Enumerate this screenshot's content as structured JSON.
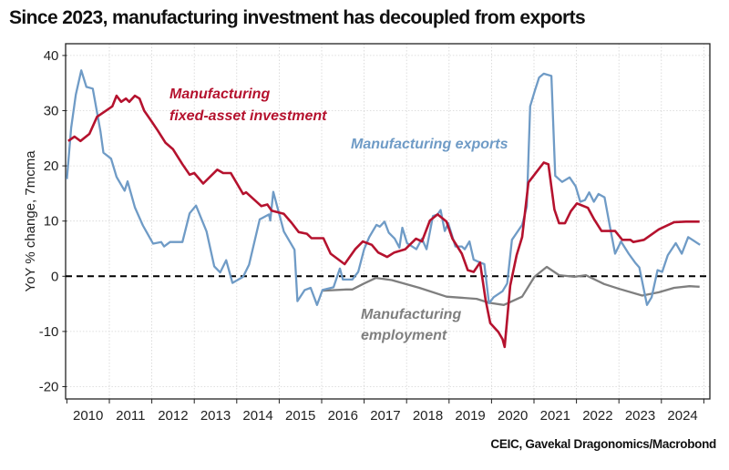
{
  "chart_data": {
    "type": "line",
    "title": "Since 2023, manufacturing investment has decoupled from exports",
    "source": "CEIC, Gavekal Dragonomics/Macrobond",
    "ylabel": "YoY % change, 7mcma",
    "xlabel": "",
    "xlim": [
      2010,
      2025
    ],
    "ylim": [
      -22,
      42
    ],
    "yticks": [
      -20,
      -10,
      0,
      10,
      20,
      30,
      40
    ],
    "xtick_labels": [
      "2010",
      "2011",
      "2012",
      "2013",
      "2014",
      "2015",
      "2016",
      "2017",
      "2018",
      "2019",
      "2020",
      "2021",
      "2022",
      "2023",
      "2024"
    ],
    "grid": true,
    "reference_line": {
      "y": 0,
      "style": "dashed",
      "color": "#000000"
    },
    "series": [
      {
        "name": "Manufacturing fixed-asset investment",
        "label_lines": [
          "Manufacturing",
          "fixed-asset investment"
        ],
        "color": "#b5122e",
        "points": [
          [
            2010.03,
            24.5
          ],
          [
            2010.18,
            25.3
          ],
          [
            2010.32,
            24.5
          ],
          [
            2010.53,
            25.8
          ],
          [
            2010.71,
            28.9
          ],
          [
            2010.96,
            30.2
          ],
          [
            2011.07,
            30.8
          ],
          [
            2011.17,
            32.7
          ],
          [
            2011.28,
            31.6
          ],
          [
            2011.39,
            32.2
          ],
          [
            2011.47,
            31.6
          ],
          [
            2011.6,
            32.7
          ],
          [
            2011.71,
            32.2
          ],
          [
            2011.82,
            30
          ],
          [
            2012.0,
            28
          ],
          [
            2012.14,
            26.4
          ],
          [
            2012.32,
            24.2
          ],
          [
            2012.5,
            23
          ],
          [
            2012.72,
            20.3
          ],
          [
            2012.89,
            18.4
          ],
          [
            2013.0,
            18.7
          ],
          [
            2013.21,
            16.8
          ],
          [
            2013.54,
            19.3
          ],
          [
            2013.68,
            18.7
          ],
          [
            2013.86,
            18.7
          ],
          [
            2014.15,
            14.9
          ],
          [
            2014.22,
            15.2
          ],
          [
            2014.58,
            12.7
          ],
          [
            2014.72,
            13
          ],
          [
            2014.82,
            11.9
          ],
          [
            2015.11,
            11.3
          ],
          [
            2015.29,
            9.7
          ],
          [
            2015.46,
            8.0
          ],
          [
            2015.65,
            7.7
          ],
          [
            2015.76,
            6.9
          ],
          [
            2016.04,
            6.9
          ],
          [
            2016.21,
            4.1
          ],
          [
            2016.54,
            2.2
          ],
          [
            2016.79,
            4.9
          ],
          [
            2016.97,
            6.3
          ],
          [
            2017.18,
            5.7
          ],
          [
            2017.33,
            4.3
          ],
          [
            2017.54,
            3.5
          ],
          [
            2017.71,
            4.3
          ],
          [
            2017.97,
            4.9
          ],
          [
            2018.22,
            6.8
          ],
          [
            2018.36,
            6.3
          ],
          [
            2018.55,
            10.1
          ],
          [
            2018.73,
            11.2
          ],
          [
            2018.94,
            9.9
          ],
          [
            2019.08,
            6.8
          ],
          [
            2019.3,
            4.1
          ],
          [
            2019.44,
            1.1
          ],
          [
            2019.58,
            0.8
          ],
          [
            2019.73,
            2.5
          ],
          [
            2019.86,
            -4.3
          ],
          [
            2019.97,
            -8.5
          ],
          [
            2020.16,
            -10.1
          ],
          [
            2020.26,
            -11.4
          ],
          [
            2020.31,
            -12.8
          ],
          [
            2020.44,
            -1.7
          ],
          [
            2020.59,
            3.8
          ],
          [
            2020.72,
            7.1
          ],
          [
            2020.87,
            17
          ],
          [
            2021.09,
            19.2
          ],
          [
            2021.23,
            20.6
          ],
          [
            2021.34,
            20.3
          ],
          [
            2021.48,
            12.1
          ],
          [
            2021.59,
            9.6
          ],
          [
            2021.73,
            9.6
          ],
          [
            2021.87,
            11.8
          ],
          [
            2022.01,
            13.2
          ],
          [
            2022.27,
            12.4
          ],
          [
            2022.41,
            10.4
          ],
          [
            2022.59,
            8.2
          ],
          [
            2022.73,
            8.2
          ],
          [
            2022.91,
            8.2
          ],
          [
            2023.08,
            6.6
          ],
          [
            2023.27,
            6.6
          ],
          [
            2023.34,
            6.2
          ],
          [
            2023.59,
            6.6
          ],
          [
            2023.94,
            8.5
          ],
          [
            2024.3,
            9.8
          ],
          [
            2024.58,
            9.9
          ],
          [
            2024.9,
            9.9
          ]
        ]
      },
      {
        "name": "Manufacturing exports",
        "label_lines": [
          "Manufacturing exports"
        ],
        "color": "#6f9bc6",
        "points": [
          [
            2010.0,
            17.6
          ],
          [
            2010.1,
            26.9
          ],
          [
            2010.21,
            32.9
          ],
          [
            2010.34,
            37.3
          ],
          [
            2010.46,
            34.3
          ],
          [
            2010.61,
            34
          ],
          [
            2010.79,
            26.3
          ],
          [
            2010.86,
            22.4
          ],
          [
            2011.04,
            21.3
          ],
          [
            2011.17,
            18
          ],
          [
            2011.36,
            15.5
          ],
          [
            2011.43,
            17.2
          ],
          [
            2011.6,
            12.5
          ],
          [
            2011.79,
            9.2
          ],
          [
            2012.03,
            5.9
          ],
          [
            2012.22,
            6.2
          ],
          [
            2012.29,
            5.4
          ],
          [
            2012.43,
            6.2
          ],
          [
            2012.72,
            6.2
          ],
          [
            2012.89,
            11.4
          ],
          [
            2013.04,
            12.8
          ],
          [
            2013.29,
            8.1
          ],
          [
            2013.47,
            1.8
          ],
          [
            2013.61,
            0.7
          ],
          [
            2013.75,
            2.9
          ],
          [
            2013.9,
            -1.2
          ],
          [
            2014.15,
            -0.1
          ],
          [
            2014.29,
            2.1
          ],
          [
            2014.54,
            10.3
          ],
          [
            2014.76,
            11.2
          ],
          [
            2014.79,
            10.1
          ],
          [
            2014.86,
            15.3
          ],
          [
            2015.11,
            8.1
          ],
          [
            2015.36,
            4.8
          ],
          [
            2015.43,
            -4.5
          ],
          [
            2015.6,
            -2.5
          ],
          [
            2015.74,
            -2.1
          ],
          [
            2015.89,
            -5.2
          ],
          [
            2016.02,
            -2.5
          ],
          [
            2016.28,
            -2
          ],
          [
            2016.43,
            1.4
          ],
          [
            2016.5,
            -0.6
          ],
          [
            2016.72,
            -0.6
          ],
          [
            2016.86,
            0.8
          ],
          [
            2017.0,
            4.9
          ],
          [
            2017.12,
            7.1
          ],
          [
            2017.29,
            9.3
          ],
          [
            2017.37,
            9
          ],
          [
            2017.48,
            9.9
          ],
          [
            2017.58,
            7.9
          ],
          [
            2017.72,
            6.8
          ],
          [
            2017.83,
            5.2
          ],
          [
            2017.9,
            8.8
          ],
          [
            2018.01,
            6
          ],
          [
            2018.23,
            4.9
          ],
          [
            2018.36,
            6.8
          ],
          [
            2018.47,
            4.9
          ],
          [
            2018.62,
            10.9
          ],
          [
            2018.73,
            11.2
          ],
          [
            2018.8,
            12
          ],
          [
            2018.9,
            8.2
          ],
          [
            2018.98,
            9.6
          ],
          [
            2019.15,
            5.4
          ],
          [
            2019.3,
            5.4
          ],
          [
            2019.37,
            4.9
          ],
          [
            2019.48,
            6.3
          ],
          [
            2019.58,
            3
          ],
          [
            2019.73,
            2.5
          ],
          [
            2019.83,
            2.2
          ],
          [
            2019.94,
            -4.9
          ],
          [
            2020.05,
            -3.8
          ],
          [
            2020.26,
            -2.7
          ],
          [
            2020.37,
            -1.3
          ],
          [
            2020.48,
            6.6
          ],
          [
            2020.72,
            9.3
          ],
          [
            2020.83,
            12.6
          ],
          [
            2020.91,
            30.8
          ],
          [
            2021.02,
            33.6
          ],
          [
            2021.12,
            36
          ],
          [
            2021.23,
            36.7
          ],
          [
            2021.41,
            36.3
          ],
          [
            2021.5,
            18.2
          ],
          [
            2021.66,
            17.1
          ],
          [
            2021.84,
            17.9
          ],
          [
            2021.98,
            16.3
          ],
          [
            2022.09,
            13.5
          ],
          [
            2022.2,
            13.8
          ],
          [
            2022.3,
            15.2
          ],
          [
            2022.41,
            13.5
          ],
          [
            2022.52,
            14.9
          ],
          [
            2022.66,
            14.3
          ],
          [
            2022.8,
            8.5
          ],
          [
            2022.91,
            4.1
          ],
          [
            2023.05,
            6.3
          ],
          [
            2023.23,
            4.1
          ],
          [
            2023.38,
            2.5
          ],
          [
            2023.48,
            1.6
          ],
          [
            2023.66,
            -5.2
          ],
          [
            2023.77,
            -3.8
          ],
          [
            2023.91,
            1.1
          ],
          [
            2024.02,
            0.8
          ],
          [
            2024.15,
            3.8
          ],
          [
            2024.34,
            6
          ],
          [
            2024.48,
            4.1
          ],
          [
            2024.63,
            7.1
          ],
          [
            2024.91,
            5.7
          ]
        ]
      },
      {
        "name": "Manufacturing employment",
        "label_lines": [
          "Manufacturing",
          "employment"
        ],
        "color": "#7f7f7f",
        "points": [
          [
            2016.03,
            -2.6
          ],
          [
            2016.58,
            -2.4
          ],
          [
            2016.72,
            -2.4
          ],
          [
            2017.0,
            -1.3
          ],
          [
            2017.28,
            -0.3
          ],
          [
            2017.65,
            -0.7
          ],
          [
            2018.3,
            -2.1
          ],
          [
            2018.94,
            -3.7
          ],
          [
            2019.65,
            -4.1
          ],
          [
            2019.94,
            -4.8
          ],
          [
            2020.29,
            -5.2
          ],
          [
            2020.72,
            -3.7
          ],
          [
            2021.01,
            -0.1
          ],
          [
            2021.3,
            1.7
          ],
          [
            2021.59,
            0.2
          ],
          [
            2021.95,
            -0.1
          ],
          [
            2022.22,
            0.2
          ],
          [
            2022.65,
            -1.4
          ],
          [
            2023.01,
            -2.3
          ],
          [
            2023.55,
            -3.5
          ],
          [
            2023.94,
            -2.9
          ],
          [
            2024.3,
            -2.1
          ],
          [
            2024.66,
            -1.8
          ],
          [
            2024.9,
            -1.9
          ]
        ]
      }
    ]
  }
}
